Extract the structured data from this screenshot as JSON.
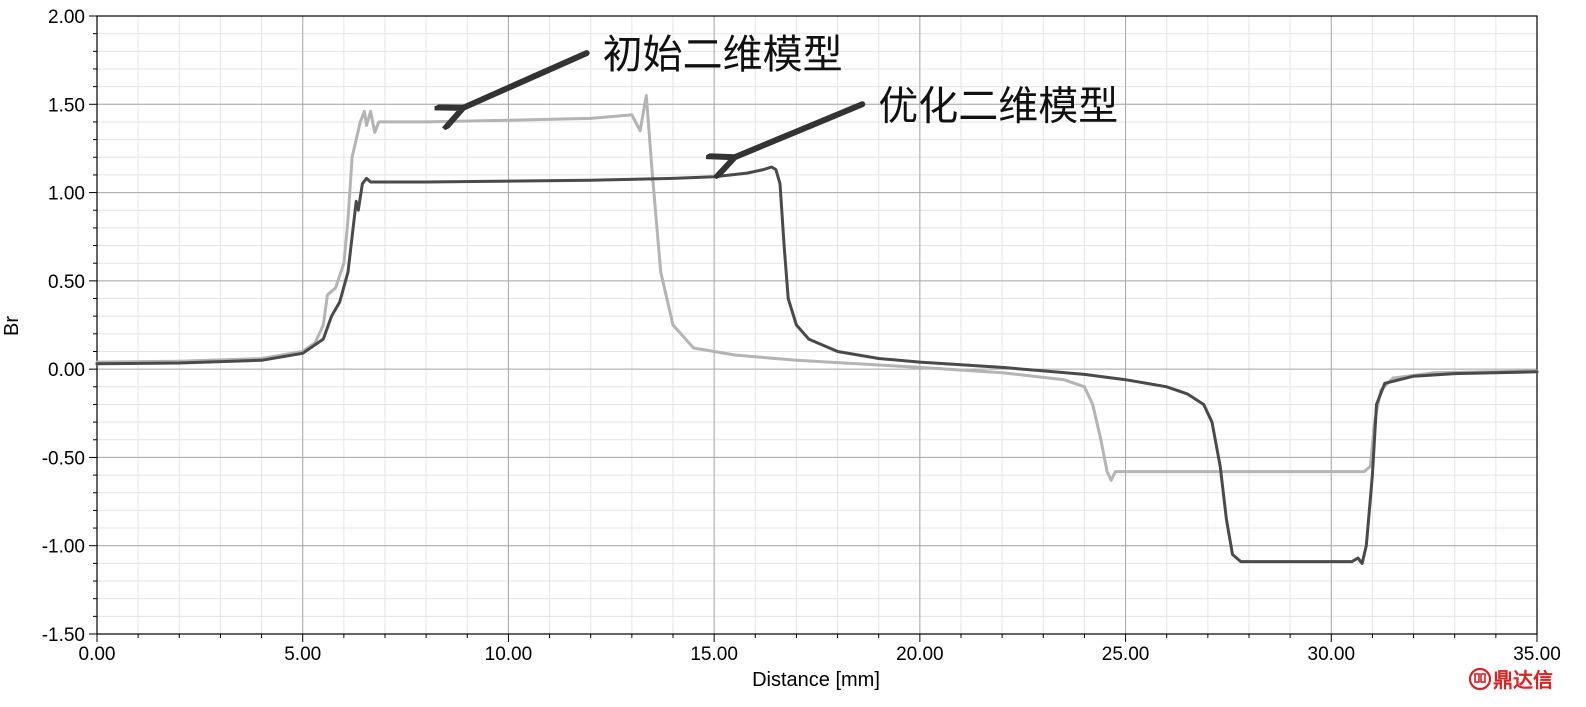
{
  "chart_data": {
    "type": "line",
    "title": "",
    "xlabel": "Distance [mm]",
    "ylabel": "Br",
    "xlim": [
      0,
      35
    ],
    "ylim": [
      -1.5,
      2.0
    ],
    "x_ticks": [
      "0.00",
      "5.00",
      "10.00",
      "15.00",
      "20.00",
      "25.00",
      "30.00",
      "35.00"
    ],
    "y_ticks": [
      "2.00",
      "1.50",
      "1.00",
      "0.50",
      "0.00",
      "-0.50",
      "-1.00",
      "-1.50"
    ],
    "grid": true,
    "series": [
      {
        "name": "初始二维模型",
        "color": "#b4b4b4",
        "points": [
          [
            0,
            0.04
          ],
          [
            2.0,
            0.045
          ],
          [
            4.0,
            0.06
          ],
          [
            5.0,
            0.1
          ],
          [
            5.3,
            0.15
          ],
          [
            5.5,
            0.25
          ],
          [
            5.6,
            0.42
          ],
          [
            5.8,
            0.46
          ],
          [
            6.0,
            0.6
          ],
          [
            6.1,
            0.85
          ],
          [
            6.2,
            1.2
          ],
          [
            6.4,
            1.4
          ],
          [
            6.5,
            1.46
          ],
          [
            6.55,
            1.38
          ],
          [
            6.65,
            1.46
          ],
          [
            6.75,
            1.34
          ],
          [
            6.85,
            1.4
          ],
          [
            8.0,
            1.4
          ],
          [
            10.0,
            1.41
          ],
          [
            12.0,
            1.42
          ],
          [
            13.0,
            1.44
          ],
          [
            13.2,
            1.35
          ],
          [
            13.35,
            1.55
          ],
          [
            13.5,
            1.1
          ],
          [
            13.7,
            0.55
          ],
          [
            14.0,
            0.25
          ],
          [
            14.5,
            0.12
          ],
          [
            15.5,
            0.08
          ],
          [
            17.0,
            0.05
          ],
          [
            20.0,
            0.01
          ],
          [
            22.0,
            -0.02
          ],
          [
            23.5,
            -0.06
          ],
          [
            24.0,
            -0.1
          ],
          [
            24.2,
            -0.2
          ],
          [
            24.4,
            -0.4
          ],
          [
            24.55,
            -0.58
          ],
          [
            24.65,
            -0.63
          ],
          [
            24.75,
            -0.58
          ],
          [
            27.0,
            -0.58
          ],
          [
            29.0,
            -0.58
          ],
          [
            30.8,
            -0.58
          ],
          [
            30.95,
            -0.55
          ],
          [
            31.05,
            -0.3
          ],
          [
            31.2,
            -0.12
          ],
          [
            31.5,
            -0.05
          ],
          [
            32.5,
            -0.02
          ],
          [
            34.0,
            -0.015
          ],
          [
            35.0,
            -0.01
          ]
        ]
      },
      {
        "name": "优化二维模型",
        "color": "#4a4a4a",
        "points": [
          [
            0,
            0.03
          ],
          [
            2.0,
            0.035
          ],
          [
            4.0,
            0.05
          ],
          [
            5.0,
            0.09
          ],
          [
            5.5,
            0.17
          ],
          [
            5.7,
            0.3
          ],
          [
            5.9,
            0.38
          ],
          [
            6.1,
            0.55
          ],
          [
            6.2,
            0.75
          ],
          [
            6.3,
            0.95
          ],
          [
            6.35,
            0.9
          ],
          [
            6.45,
            1.05
          ],
          [
            6.55,
            1.08
          ],
          [
            6.65,
            1.06
          ],
          [
            8.0,
            1.06
          ],
          [
            10.0,
            1.065
          ],
          [
            12.0,
            1.07
          ],
          [
            14.0,
            1.08
          ],
          [
            15.0,
            1.09
          ],
          [
            15.8,
            1.11
          ],
          [
            16.2,
            1.13
          ],
          [
            16.4,
            1.145
          ],
          [
            16.5,
            1.13
          ],
          [
            16.6,
            1.05
          ],
          [
            16.7,
            0.7
          ],
          [
            16.8,
            0.4
          ],
          [
            17.0,
            0.25
          ],
          [
            17.3,
            0.17
          ],
          [
            18.0,
            0.1
          ],
          [
            19.0,
            0.06
          ],
          [
            20.0,
            0.04
          ],
          [
            22.0,
            0.01
          ],
          [
            23.0,
            -0.01
          ],
          [
            24.0,
            -0.03
          ],
          [
            25.0,
            -0.06
          ],
          [
            26.0,
            -0.1
          ],
          [
            26.5,
            -0.14
          ],
          [
            26.9,
            -0.2
          ],
          [
            27.1,
            -0.3
          ],
          [
            27.3,
            -0.55
          ],
          [
            27.45,
            -0.85
          ],
          [
            27.6,
            -1.05
          ],
          [
            27.8,
            -1.09
          ],
          [
            29.0,
            -1.09
          ],
          [
            30.5,
            -1.09
          ],
          [
            30.65,
            -1.07
          ],
          [
            30.75,
            -1.1
          ],
          [
            30.85,
            -1.0
          ],
          [
            31.0,
            -0.6
          ],
          [
            31.1,
            -0.2
          ],
          [
            31.3,
            -0.08
          ],
          [
            32.0,
            -0.04
          ],
          [
            33.0,
            -0.025
          ],
          [
            35.0,
            -0.015
          ]
        ]
      }
    ],
    "annotations": [
      {
        "text": "初始二维模型",
        "arrow_from": [
          11.9,
          1.79
        ],
        "arrow_to": [
          8.9,
          1.48
        ]
      },
      {
        "text": "优化二维模型",
        "arrow_from": [
          18.6,
          1.5
        ],
        "arrow_to": [
          15.5,
          1.2
        ]
      }
    ]
  },
  "watermark": {
    "text": "鼎达信",
    "icon": "dingdaxin-logo-icon",
    "color": "#e02020"
  }
}
